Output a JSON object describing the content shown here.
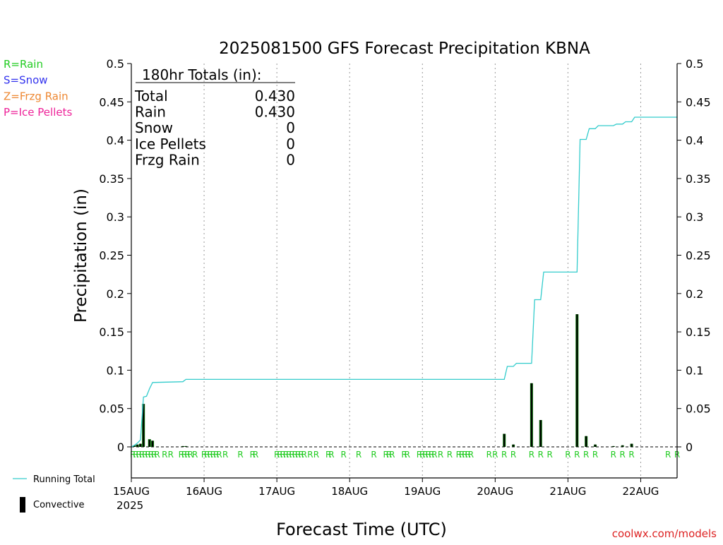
{
  "chart_data": {
    "type": "bar",
    "title": "2025081500 GFS Forecast Precipitation KBNA",
    "xlabel": "Forecast Time (UTC)",
    "ylabel": "Precipitation (in)",
    "ylim": [
      0,
      0.5
    ],
    "xlim_hours": [
      0,
      180
    ],
    "grid": "vertical-dotted-daily",
    "y_ticks": [
      0,
      0.05,
      0.1,
      0.15,
      0.2,
      0.25,
      0.3,
      0.35,
      0.4,
      0.45,
      0.5
    ],
    "y_tick_labels": [
      "0",
      "0.05",
      "0.1",
      "0.15",
      "0.2",
      "0.25",
      "0.3",
      "0.35",
      "0.4",
      "0.45",
      "0.5"
    ],
    "x_ticks": [
      {
        "hour": 0,
        "label": "15AUG"
      },
      {
        "hour": 24,
        "label": "16AUG"
      },
      {
        "hour": 48,
        "label": "17AUG"
      },
      {
        "hour": 72,
        "label": "18AUG"
      },
      {
        "hour": 96,
        "label": "19AUG"
      },
      {
        "hour": 120,
        "label": "20AUG"
      },
      {
        "hour": 144,
        "label": "21AUG"
      },
      {
        "hour": 168,
        "label": "22AUG"
      }
    ],
    "year_label": "2025",
    "totals_box": {
      "header": "180hr Totals (in):",
      "rows": [
        {
          "label": "Total",
          "value": "0.430"
        },
        {
          "label": "Rain",
          "value": "0.430"
        },
        {
          "label": "Snow",
          "value": "0"
        },
        {
          "label": "Ice Pellets",
          "value": "0"
        },
        {
          "label": "Frzg Rain",
          "value": "0"
        }
      ]
    },
    "precip_type_legend": [
      {
        "label": "R=Rain",
        "color": "#22cc22"
      },
      {
        "label": "S=Snow",
        "color": "#3333ee"
      },
      {
        "label": "Z=Frzg Rain",
        "color": "#ee8833"
      },
      {
        "label": "P=Ice Pellets",
        "color": "#ee2299"
      }
    ],
    "series_legend": [
      {
        "label": "Running Total",
        "color": "#33cccc",
        "symbol": "line"
      },
      {
        "label": "Convective",
        "color": "#000000",
        "symbol": "bar"
      }
    ],
    "colors": {
      "total_bar": "#006400",
      "convective_bar": "#000000",
      "running_total": "#33cccc",
      "type_letters": "#22cc22"
    },
    "bars": [
      {
        "hour": 1,
        "total": 0.002,
        "convective": 0.002
      },
      {
        "hour": 2,
        "total": 0.003,
        "convective": 0.003
      },
      {
        "hour": 3,
        "total": 0.004,
        "convective": 0.004
      },
      {
        "hour": 4,
        "total": 0.056,
        "convective": 0.056
      },
      {
        "hour": 6,
        "total": 0.01,
        "convective": 0.009
      },
      {
        "hour": 7,
        "total": 0.008,
        "convective": 0.008
      },
      {
        "hour": 17,
        "total": 0.001,
        "convective": 0.001
      },
      {
        "hour": 18,
        "total": 0.001,
        "convective": 0.001
      },
      {
        "hour": 123,
        "total": 0.017,
        "convective": 0.017
      },
      {
        "hour": 126,
        "total": 0.003,
        "convective": 0.003
      },
      {
        "hour": 132,
        "total": 0.083,
        "convective": 0.083
      },
      {
        "hour": 135,
        "total": 0.035,
        "convective": 0.035
      },
      {
        "hour": 147,
        "total": 0.173,
        "convective": 0.173
      },
      {
        "hour": 150,
        "total": 0.014,
        "convective": 0.014
      },
      {
        "hour": 153,
        "total": 0.003,
        "convective": 0.003
      },
      {
        "hour": 159,
        "total": 0.001,
        "convective": 0.001
      },
      {
        "hour": 162,
        "total": 0.002,
        "convective": 0.002
      },
      {
        "hour": 165,
        "total": 0.004,
        "convective": 0.004
      }
    ],
    "running_total": {
      "x": [
        0,
        1,
        2,
        3,
        4,
        5,
        6,
        7,
        17,
        18,
        123,
        124,
        126,
        127,
        132,
        133,
        135,
        136,
        147,
        148,
        150,
        151,
        153,
        154,
        159,
        160,
        162,
        163,
        165,
        166,
        180
      ],
      "y": [
        0,
        0.002,
        0.005,
        0.009,
        0.065,
        0.066,
        0.076,
        0.084,
        0.085,
        0.088,
        0.088,
        0.105,
        0.105,
        0.109,
        0.109,
        0.192,
        0.192,
        0.228,
        0.228,
        0.401,
        0.401,
        0.415,
        0.415,
        0.419,
        0.419,
        0.421,
        0.421,
        0.424,
        0.424,
        0.43,
        0.43
      ]
    },
    "type_markers": {
      "letter": "R",
      "hours": [
        0.5,
        1.5,
        2.5,
        3.5,
        4.5,
        5.5,
        6.5,
        7.5,
        8.5,
        11,
        13,
        16.5,
        17.5,
        18.5,
        19.5,
        21,
        24,
        25,
        26,
        27,
        28,
        29,
        31,
        36,
        40,
        41,
        48,
        49,
        50,
        51,
        52,
        53,
        54,
        55,
        56,
        57,
        59,
        61,
        65,
        66,
        70,
        75,
        80,
        84,
        85,
        86,
        90,
        91,
        95,
        96,
        97,
        98,
        99,
        100,
        102,
        105,
        108,
        109,
        110,
        111,
        112,
        118,
        120,
        123,
        126,
        132,
        135,
        138,
        144,
        147,
        150,
        153,
        159,
        162,
        165,
        177,
        180
      ]
    },
    "footer_credit": "coolwx.com/models"
  }
}
